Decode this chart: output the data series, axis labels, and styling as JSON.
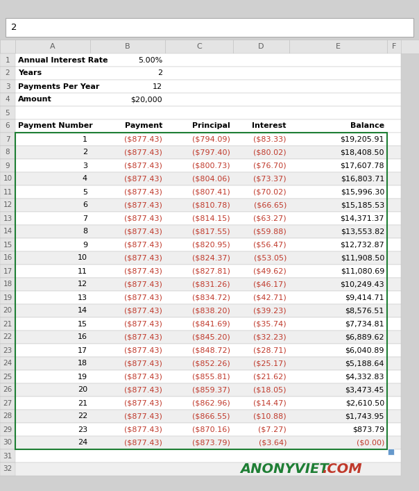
{
  "formula_bar_text": "2",
  "col_headers": [
    "A",
    "B",
    "C",
    "D",
    "E",
    "F"
  ],
  "info_rows": [
    {
      "row": 1,
      "label": "Annual Interest Rate",
      "value": "5.00%"
    },
    {
      "row": 2,
      "label": "Years",
      "value": "2"
    },
    {
      "row": 3,
      "label": "Payments Per Year",
      "value": "12"
    },
    {
      "row": 4,
      "label": "Amount",
      "value": "$20,000"
    },
    {
      "row": 5,
      "label": "",
      "value": ""
    }
  ],
  "table_headers": [
    "Payment Number",
    "Payment",
    "Principal",
    "Interest",
    "Balance"
  ],
  "data_rows": [
    [
      1,
      "($877.43)",
      "($794.09)",
      "($83.33)",
      "$19,205.91"
    ],
    [
      2,
      "($877.43)",
      "($797.40)",
      "($80.02)",
      "$18,408.50"
    ],
    [
      3,
      "($877.43)",
      "($800.73)",
      "($76.70)",
      "$17,607.78"
    ],
    [
      4,
      "($877.43)",
      "($804.06)",
      "($73.37)",
      "$16,803.71"
    ],
    [
      5,
      "($877.43)",
      "($807.41)",
      "($70.02)",
      "$15,996.30"
    ],
    [
      6,
      "($877.43)",
      "($810.78)",
      "($66.65)",
      "$15,185.53"
    ],
    [
      7,
      "($877.43)",
      "($814.15)",
      "($63.27)",
      "$14,371.37"
    ],
    [
      8,
      "($877.43)",
      "($817.55)",
      "($59.88)",
      "$13,553.82"
    ],
    [
      9,
      "($877.43)",
      "($820.95)",
      "($56.47)",
      "$12,732.87"
    ],
    [
      10,
      "($877.43)",
      "($824.37)",
      "($53.05)",
      "$11,908.50"
    ],
    [
      11,
      "($877.43)",
      "($827.81)",
      "($49.62)",
      "$11,080.69"
    ],
    [
      12,
      "($877.43)",
      "($831.26)",
      "($46.17)",
      "$10,249.43"
    ],
    [
      13,
      "($877.43)",
      "($834.72)",
      "($42.71)",
      "$9,414.71"
    ],
    [
      14,
      "($877.43)",
      "($838.20)",
      "($39.23)",
      "$8,576.51"
    ],
    [
      15,
      "($877.43)",
      "($841.69)",
      "($35.74)",
      "$7,734.81"
    ],
    [
      16,
      "($877.43)",
      "($845.20)",
      "($32.23)",
      "$6,889.62"
    ],
    [
      17,
      "($877.43)",
      "($848.72)",
      "($28.71)",
      "$6,040.89"
    ],
    [
      18,
      "($877.43)",
      "($852.26)",
      "($25.17)",
      "$5,188.64"
    ],
    [
      19,
      "($877.43)",
      "($855.81)",
      "($21.62)",
      "$4,332.83"
    ],
    [
      20,
      "($877.43)",
      "($859.37)",
      "($18.05)",
      "$3,473.45"
    ],
    [
      21,
      "($877.43)",
      "($862.96)",
      "($14.47)",
      "$2,610.50"
    ],
    [
      22,
      "($877.43)",
      "($866.55)",
      "($10.88)",
      "$1,743.95"
    ],
    [
      23,
      "($877.43)",
      "($870.16)",
      "($7.27)",
      "$873.79"
    ],
    [
      24,
      "($877.43)",
      "($873.79)",
      "($3.64)",
      "($0.00)"
    ]
  ],
  "colors": {
    "outer_bg": "#d0d0d0",
    "white": "#ffffff",
    "col_header_bg": "#e4e4e4",
    "row_odd_bg": "#efefef",
    "row_even_bg": "#ffffff",
    "grid_line": "#c0c0c0",
    "col_header_text": "#606060",
    "row_num_text": "#606060",
    "black_text": "#000000",
    "red_text": "#c0392b",
    "green_border": "#1e7e34",
    "watermark_green": "#1e7e34",
    "watermark_red": "#c0392b"
  }
}
